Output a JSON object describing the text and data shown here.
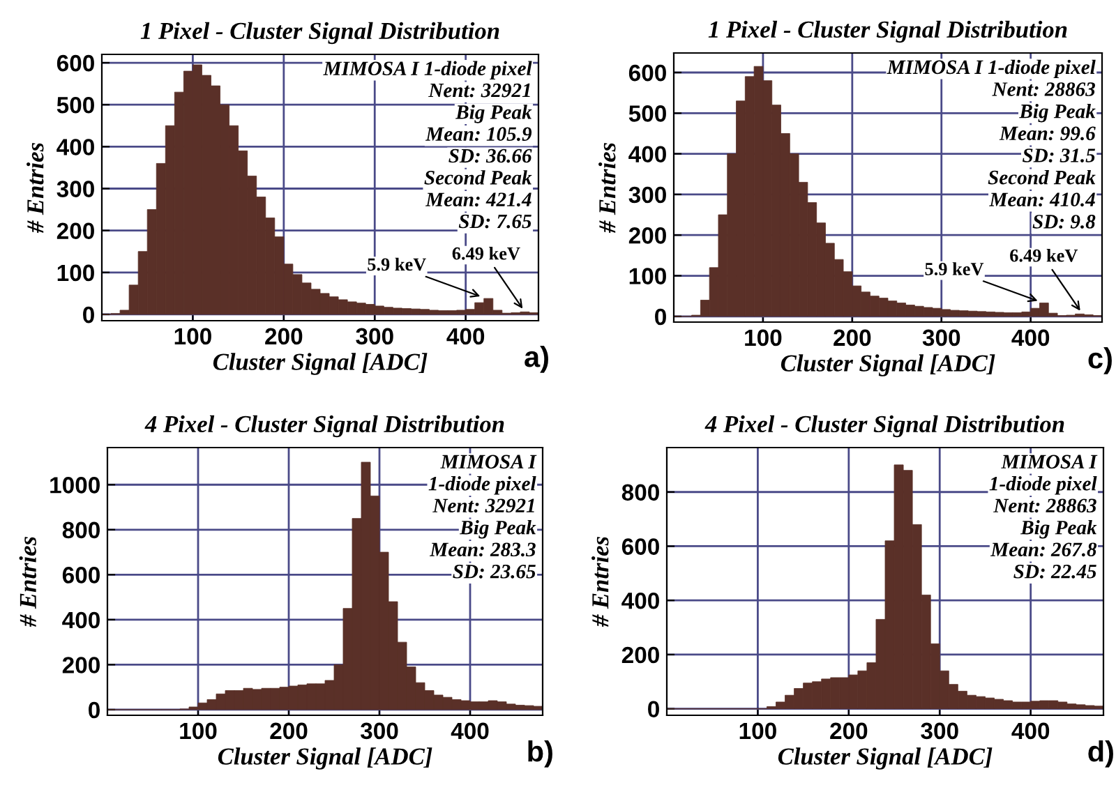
{
  "chart_data": [
    {
      "type": "histogram",
      "title": "1 Pixel - Cluster Signal Distribution",
      "xlabel": "Cluster Signal [ADC]",
      "ylabel": "# Entries",
      "color": "#5a3028",
      "grid": true,
      "xlim": [
        0,
        480
      ],
      "ylim": [
        -15,
        620
      ],
      "xticks": [
        100,
        200,
        300,
        400
      ],
      "yticks": [
        0,
        100,
        200,
        300,
        400,
        500,
        600
      ],
      "bins": [
        0,
        10,
        20,
        30,
        40,
        50,
        60,
        70,
        80,
        90,
        100,
        110,
        120,
        130,
        140,
        150,
        160,
        170,
        180,
        190,
        200,
        210,
        220,
        230,
        240,
        250,
        260,
        270,
        280,
        290,
        300,
        310,
        320,
        330,
        340,
        350,
        360,
        370,
        380,
        390,
        400,
        410,
        420,
        430,
        440,
        450,
        460,
        470,
        480
      ],
      "values": [
        0,
        2,
        10,
        70,
        150,
        250,
        360,
        450,
        530,
        580,
        595,
        570,
        545,
        500,
        450,
        390,
        330,
        280,
        230,
        185,
        120,
        95,
        75,
        60,
        50,
        42,
        35,
        30,
        27,
        24,
        20,
        17,
        15,
        14,
        13,
        12,
        10,
        9,
        9,
        10,
        12,
        28,
        38,
        10,
        3,
        4,
        6,
        4
      ],
      "annotations": [
        "MIMOSA I 1-diode pixel",
        "Nent: 32921",
        "Big Peak",
        "Mean: 105.9",
        "SD: 36.66",
        "Second Peak",
        "Mean: 421.4",
        "SD: 7.65",
        {
          "text": "5.9 keV",
          "x": 420,
          "y": 40
        },
        {
          "text": "6.49 keV",
          "x": 465,
          "y": 6
        },
        "a)"
      ]
    },
    {
      "type": "histogram",
      "title": "1 Pixel - Cluster Signal Distribution",
      "xlabel": "Cluster Signal [ADC]",
      "ylabel": "# Entries",
      "color": "#5a3028",
      "grid": true,
      "xlim": [
        0,
        480
      ],
      "ylim": [
        -14,
        648
      ],
      "xticks": [
        100,
        200,
        300,
        400
      ],
      "yticks": [
        0,
        100,
        200,
        300,
        400,
        500,
        600
      ],
      "bins": [
        0,
        10,
        20,
        30,
        40,
        50,
        60,
        70,
        80,
        90,
        100,
        110,
        120,
        130,
        140,
        150,
        160,
        170,
        180,
        190,
        200,
        210,
        220,
        230,
        240,
        250,
        260,
        270,
        280,
        290,
        300,
        310,
        320,
        330,
        340,
        350,
        360,
        370,
        380,
        390,
        400,
        410,
        420,
        430,
        440,
        450,
        460,
        470,
        480
      ],
      "values": [
        0,
        0,
        3,
        40,
        120,
        250,
        400,
        530,
        590,
        615,
        580,
        520,
        450,
        400,
        330,
        280,
        230,
        180,
        140,
        110,
        75,
        60,
        50,
        45,
        38,
        33,
        28,
        25,
        22,
        20,
        17,
        15,
        14,
        13,
        12,
        11,
        10,
        9,
        9,
        11,
        20,
        33,
        8,
        2,
        3,
        6,
        4,
        2
      ],
      "annotations": [
        "MIMOSA I 1-diode pixel",
        "Nent: 28863",
        "Big Peak",
        "Mean: 99.6",
        "SD: 31.5",
        "Second Peak",
        "Mean: 410.4",
        "SD: 9.8",
        {
          "text": "5.9 keV",
          "x": 412,
          "y": 35
        },
        {
          "text": "6.49 keV",
          "x": 458,
          "y": 6
        },
        "c)"
      ]
    },
    {
      "type": "histogram",
      "title": "4 Pixel - Cluster Signal Distribution",
      "xlabel": "Cluster Signal [ADC]",
      "ylabel": "# Entries",
      "color": "#5a3028",
      "grid": true,
      "xlim": [
        0,
        480
      ],
      "ylim": [
        -25,
        1165
      ],
      "xticks": [
        100,
        200,
        300,
        400
      ],
      "yticks": [
        0,
        200,
        400,
        600,
        800,
        1000
      ],
      "bins": [
        0,
        10,
        20,
        30,
        40,
        50,
        60,
        70,
        80,
        90,
        100,
        110,
        120,
        130,
        140,
        150,
        160,
        170,
        180,
        190,
        200,
        210,
        220,
        230,
        240,
        250,
        260,
        270,
        280,
        290,
        300,
        310,
        320,
        330,
        340,
        350,
        360,
        370,
        380,
        390,
        400,
        410,
        420,
        430,
        440,
        450,
        460,
        470,
        480
      ],
      "values": [
        0,
        0,
        0,
        0,
        0,
        0,
        0,
        0,
        3,
        12,
        30,
        45,
        70,
        85,
        85,
        95,
        90,
        95,
        95,
        100,
        105,
        110,
        115,
        115,
        130,
        200,
        450,
        850,
        1100,
        950,
        700,
        480,
        300,
        190,
        120,
        85,
        65,
        55,
        45,
        40,
        35,
        35,
        40,
        35,
        25,
        20,
        18,
        15
      ],
      "annotations": [
        "MIMOSA I",
        "1-diode pixel",
        "Nent: 32921",
        "Big Peak",
        "Mean: 283.3",
        "SD: 23.65",
        "b)"
      ]
    },
    {
      "type": "histogram",
      "title": "4 Pixel - Cluster Signal Distribution",
      "xlabel": "Cluster Signal [ADC]",
      "ylabel": "# Entries",
      "color": "#5a3028",
      "grid": true,
      "xlim": [
        0,
        480
      ],
      "ylim": [
        -24,
        964
      ],
      "xticks": [
        100,
        200,
        300,
        400
      ],
      "yticks": [
        0,
        200,
        400,
        600,
        800
      ],
      "bins": [
        0,
        10,
        20,
        30,
        40,
        50,
        60,
        70,
        80,
        90,
        100,
        110,
        120,
        130,
        140,
        150,
        160,
        170,
        180,
        190,
        200,
        210,
        220,
        230,
        240,
        250,
        260,
        270,
        280,
        290,
        300,
        310,
        320,
        330,
        340,
        350,
        360,
        370,
        380,
        390,
        400,
        410,
        420,
        430,
        440,
        450,
        460,
        470,
        480
      ],
      "values": [
        0,
        0,
        0,
        0,
        0,
        0,
        0,
        0,
        0,
        0,
        0,
        8,
        25,
        50,
        75,
        95,
        100,
        110,
        115,
        115,
        125,
        140,
        170,
        330,
        620,
        900,
        880,
        680,
        420,
        240,
        140,
        90,
        65,
        50,
        45,
        40,
        35,
        30,
        25,
        25,
        28,
        30,
        30,
        25,
        18,
        15,
        12,
        10
      ],
      "annotations": [
        "MIMOSA I",
        "1-diode pixel",
        "Nent: 28863",
        "Big Peak",
        "Mean: 267.8",
        "SD: 22.45",
        "d)"
      ]
    }
  ]
}
